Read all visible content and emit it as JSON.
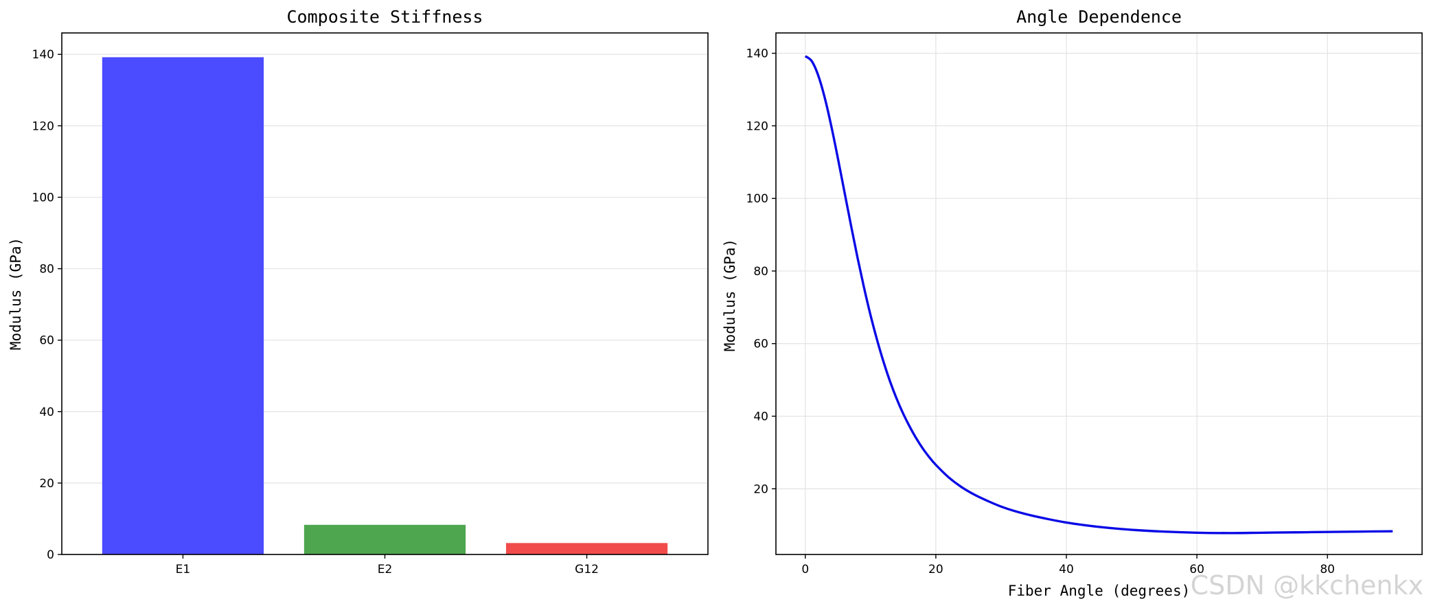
{
  "watermark": "CSDN @kkchenkx",
  "chart_data": [
    {
      "type": "bar",
      "title": "Composite Stiffness",
      "xlabel": "",
      "ylabel": "Modulus (GPa)",
      "categories": [
        "E1",
        "E2",
        "G12"
      ],
      "values": [
        139.2,
        8.3,
        3.2
      ],
      "colors": [
        "#4b4bff",
        "#4ea64e",
        "#f24b4b"
      ],
      "ylim": [
        0,
        146
      ],
      "yticks": [
        0,
        20,
        40,
        60,
        80,
        100,
        120,
        140
      ],
      "grid": true
    },
    {
      "type": "line",
      "title": "Angle Dependence",
      "xlabel": "Fiber Angle (degrees)",
      "ylabel": "Modulus (GPa)",
      "xlim": [
        -4.5,
        94.5
      ],
      "ylim": [
        1.9,
        145.6
      ],
      "xticks": [
        0,
        20,
        40,
        60,
        80
      ],
      "yticks": [
        20,
        40,
        60,
        80,
        100,
        120,
        140
      ],
      "grid": true,
      "series": [
        {
          "color": "#0a0ae6",
          "x": [
            0,
            1,
            2,
            3,
            4,
            5,
            6,
            7,
            8,
            9,
            10,
            11,
            12,
            13,
            14,
            15,
            16,
            17,
            18,
            19,
            20,
            22,
            24,
            26,
            28,
            30,
            32,
            35,
            40,
            45,
            50,
            55,
            60,
            65,
            70,
            75,
            80,
            85,
            90
          ],
          "y": [
            139.2,
            137.8,
            133.8,
            127.6,
            119.8,
            111.0,
            101.8,
            92.6,
            83.7,
            75.4,
            67.8,
            61.0,
            54.9,
            49.5,
            44.8,
            40.7,
            37.1,
            33.9,
            31.1,
            28.7,
            26.6,
            23.1,
            20.4,
            18.3,
            16.6,
            15.1,
            13.9,
            12.5,
            10.7,
            9.5,
            8.7,
            8.2,
            7.9,
            7.8,
            7.9,
            8.0,
            8.1,
            8.2,
            8.3
          ]
        }
      ]
    }
  ]
}
